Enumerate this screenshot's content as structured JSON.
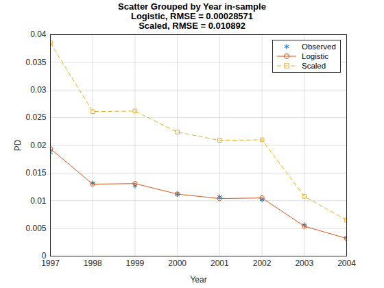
{
  "chart_data": {
    "type": "line",
    "title": "Scatter Grouped by Year in-sample\nLogistic, RMSE = 0.00028571\nScaled, RMSE = 0.010892",
    "x_label": "Year",
    "y_label": "PD",
    "x": [
      1997,
      1998,
      1999,
      2000,
      2001,
      2002,
      2003,
      2004
    ],
    "series": [
      {
        "name": "Observed",
        "color": "#0072bd",
        "marker": "asterisk",
        "line_style": "none",
        "values": [
          0.0187,
          0.0132,
          0.0127,
          0.0112,
          0.0107,
          0.0102,
          0.0056,
          0.0033
        ]
      },
      {
        "name": "Logistic",
        "color": "#d95319",
        "marker": "circle",
        "line_style": "solid",
        "values": [
          0.0194,
          0.013,
          0.0131,
          0.0112,
          0.0104,
          0.0105,
          0.0054,
          0.0032
        ]
      },
      {
        "name": "Scaled",
        "color": "#edb120",
        "marker": "square",
        "line_style": "dashed",
        "values": [
          0.0385,
          0.0261,
          0.0262,
          0.0224,
          0.0209,
          0.021,
          0.0108,
          0.0065
        ]
      }
    ],
    "xlim": [
      1997,
      2004
    ],
    "xticks": [
      1997,
      1998,
      1999,
      2000,
      2001,
      2002,
      2003,
      2004
    ],
    "ylim": [
      0,
      0.04
    ],
    "yticks": [
      0,
      0.005,
      0.01,
      0.015,
      0.02,
      0.025,
      0.03,
      0.035,
      0.04
    ],
    "grid": true,
    "legend": "northeast"
  }
}
